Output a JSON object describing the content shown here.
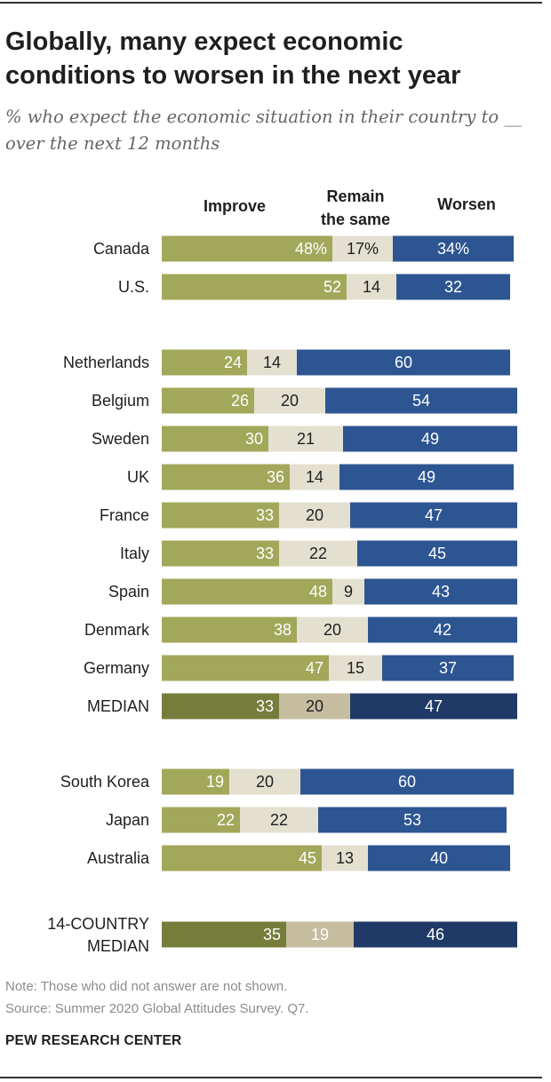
{
  "title": "Globally, many expect economic conditions to worsen in the next year",
  "subtitle": "% who expect the economic situation in their country to __ over the next 12 months",
  "colors": {
    "improve": "#a2a85a",
    "same": "#e4e0d0",
    "worsen": "#2d5592",
    "median_improve": "#767c39",
    "median_same": "#c6bca0",
    "median_worsen": "#1f3a66"
  },
  "chart_data": {
    "type": "bar",
    "orientation": "horizontal",
    "stacked": true,
    "title": "Globally, many expect economic conditions to worsen in the next year",
    "series_names": [
      "Improve",
      "Remain the same",
      "Worsen"
    ],
    "legend": {
      "improve": "Improve",
      "same_line1": "Remain",
      "same_line2": "the same",
      "worsen": "Worsen"
    },
    "unit": "%",
    "xlim": [
      0,
      100
    ],
    "groups": [
      {
        "rows": [
          {
            "label": "Canada",
            "values": [
              48,
              17,
              34
            ],
            "labels": [
              "48%",
              "17%",
              "34%"
            ],
            "median": false
          },
          {
            "label": "U.S.",
            "values": [
              52,
              14,
              32
            ],
            "labels": [
              "52",
              "14",
              "32"
            ],
            "median": false
          }
        ]
      },
      {
        "rows": [
          {
            "label": "Netherlands",
            "values": [
              24,
              14,
              60
            ],
            "labels": [
              "24",
              "14",
              "60"
            ],
            "median": false
          },
          {
            "label": "Belgium",
            "values": [
              26,
              20,
              54
            ],
            "labels": [
              "26",
              "20",
              "54"
            ],
            "median": false
          },
          {
            "label": "Sweden",
            "values": [
              30,
              21,
              49
            ],
            "labels": [
              "30",
              "21",
              "49"
            ],
            "median": false
          },
          {
            "label": "UK",
            "values": [
              36,
              14,
              49
            ],
            "labels": [
              "36",
              "14",
              "49"
            ],
            "median": false
          },
          {
            "label": "France",
            "values": [
              33,
              20,
              47
            ],
            "labels": [
              "33",
              "20",
              "47"
            ],
            "median": false
          },
          {
            "label": "Italy",
            "values": [
              33,
              22,
              45
            ],
            "labels": [
              "33",
              "22",
              "45"
            ],
            "median": false
          },
          {
            "label": "Spain",
            "values": [
              48,
              9,
              43
            ],
            "labels": [
              "48",
              "9",
              "43"
            ],
            "median": false
          },
          {
            "label": "Denmark",
            "values": [
              38,
              20,
              42
            ],
            "labels": [
              "38",
              "20",
              "42"
            ],
            "median": false
          },
          {
            "label": "Germany",
            "values": [
              47,
              15,
              37
            ],
            "labels": [
              "47",
              "15",
              "37"
            ],
            "median": false
          },
          {
            "label": "MEDIAN",
            "values": [
              33,
              20,
              47
            ],
            "labels": [
              "33",
              "20",
              "47"
            ],
            "median": true
          }
        ]
      },
      {
        "rows": [
          {
            "label": "South Korea",
            "values": [
              19,
              20,
              60
            ],
            "labels": [
              "19",
              "20",
              "60"
            ],
            "median": false
          },
          {
            "label": "Japan",
            "values": [
              22,
              22,
              53
            ],
            "labels": [
              "22",
              "22",
              "53"
            ],
            "median": false
          },
          {
            "label": "Australia",
            "values": [
              45,
              13,
              40
            ],
            "labels": [
              "45",
              "13",
              "40"
            ],
            "median": false
          }
        ]
      },
      {
        "rows": [
          {
            "label": "14-COUNTRY MEDIAN",
            "label_lines": [
              "14-COUNTRY",
              "MEDIAN"
            ],
            "values": [
              35,
              19,
              46
            ],
            "labels": [
              "35",
              "19",
              "46"
            ],
            "median": true
          }
        ]
      }
    ]
  },
  "note": "Note: Those who did not answer are not shown.",
  "source": "Source: Summer 2020 Global Attitudes Survey. Q7.",
  "brand": "PEW RESEARCH CENTER"
}
